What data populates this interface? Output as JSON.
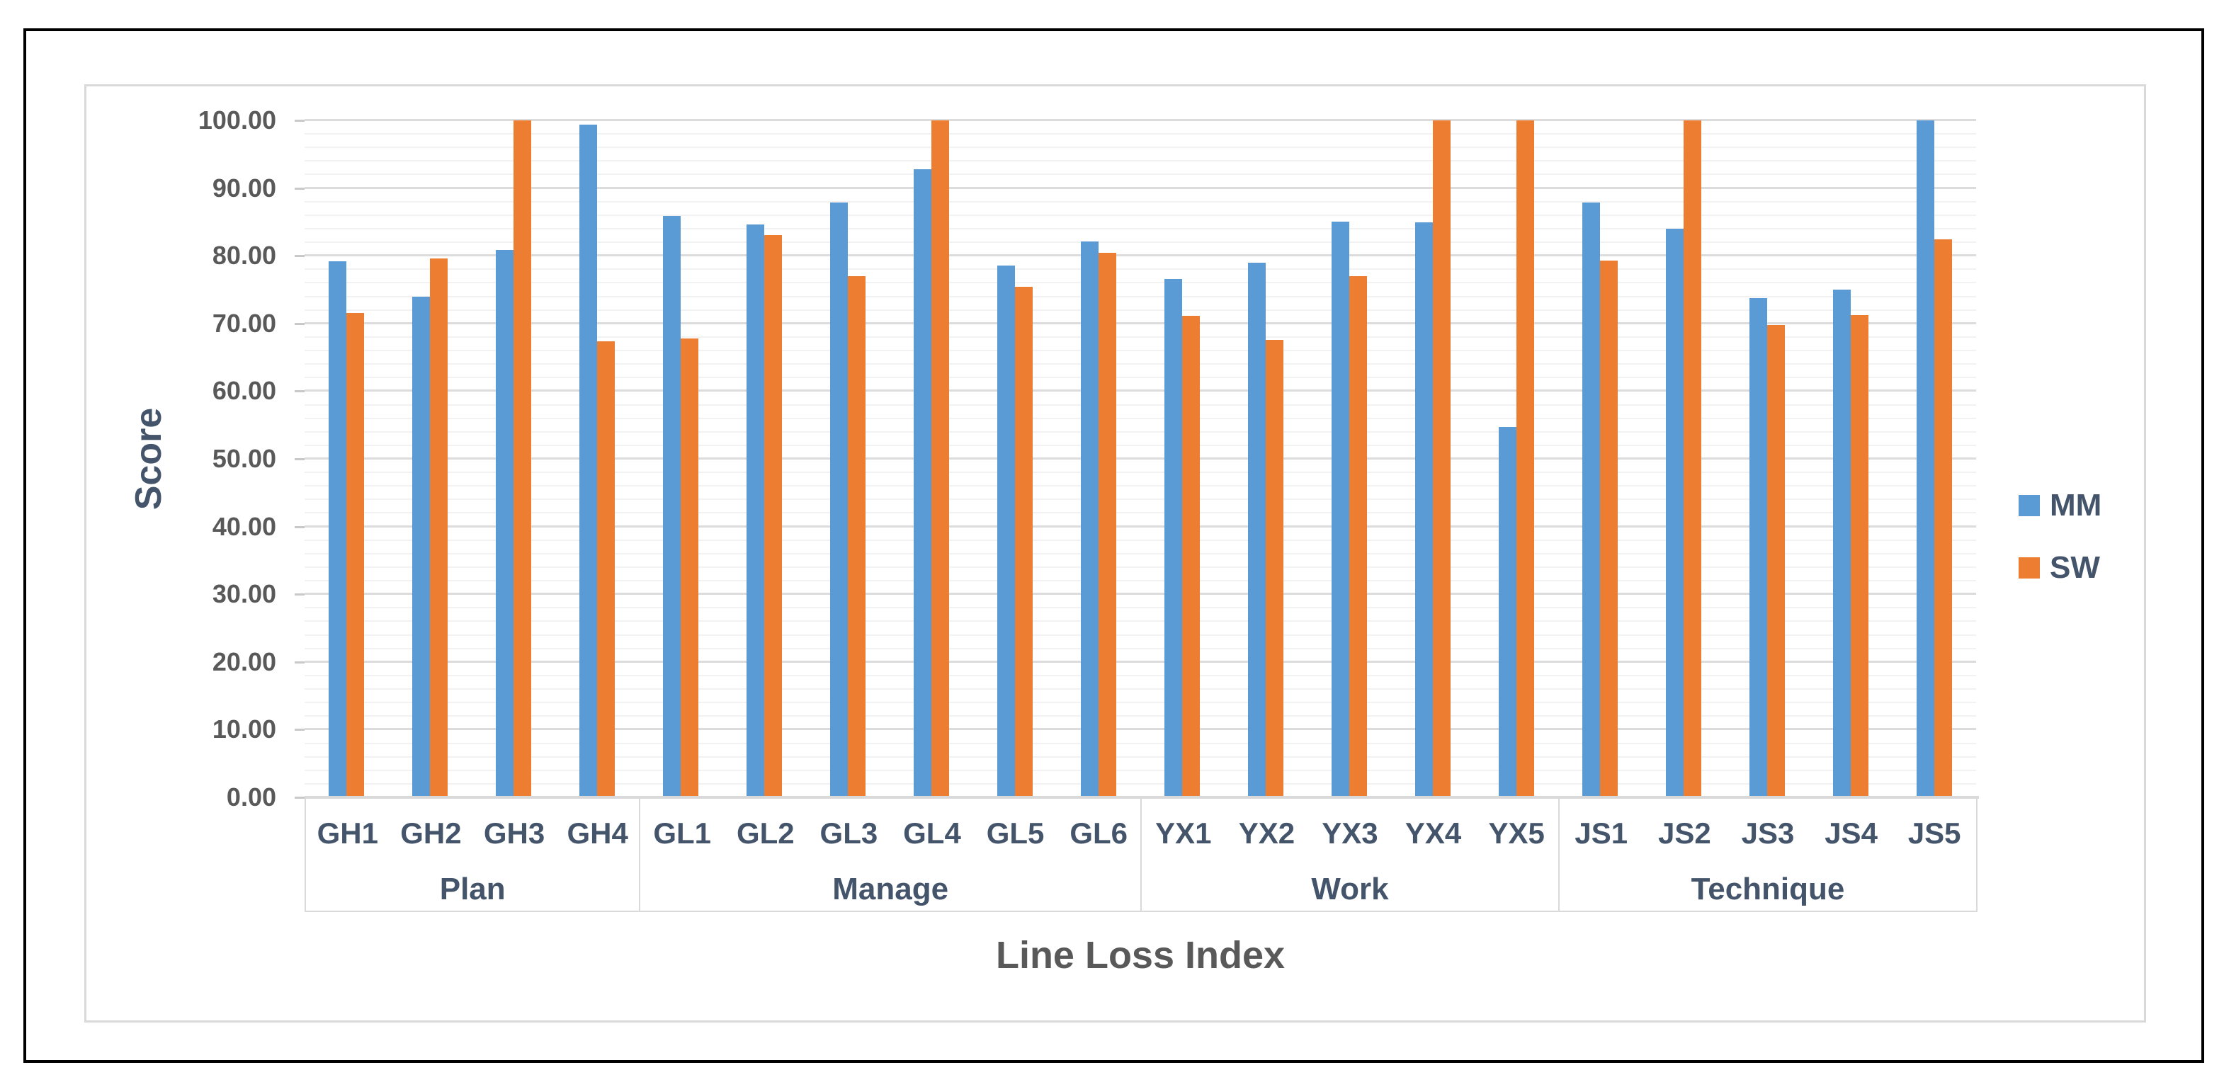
{
  "chart_data": {
    "type": "bar",
    "categories": [
      "GH1",
      "GH2",
      "GH3",
      "GH4",
      "GL1",
      "GL2",
      "GL3",
      "GL4",
      "GL5",
      "GL6",
      "YX1",
      "YX2",
      "YX3",
      "YX4",
      "YX5",
      "JS1",
      "JS2",
      "JS3",
      "JS4",
      "JS5"
    ],
    "groups": [
      {
        "label": "Plan",
        "count": 4
      },
      {
        "label": "Manage",
        "count": 6
      },
      {
        "label": "Work",
        "count": 5
      },
      {
        "label": "Technique",
        "count": 5
      }
    ],
    "series": [
      {
        "name": "MM",
        "color": "#5B9BD5",
        "values": [
          79.2,
          74.0,
          80.9,
          99.4,
          85.9,
          84.6,
          87.9,
          92.8,
          78.6,
          82.1,
          76.6,
          79.0,
          85.0,
          84.9,
          54.7,
          87.9,
          84.0,
          73.7,
          75.0,
          100.0
        ]
      },
      {
        "name": "SW",
        "color": "#ED7D31",
        "values": [
          71.5,
          79.6,
          100.0,
          67.4,
          67.8,
          83.1,
          77.0,
          100.0,
          75.4,
          80.4,
          71.1,
          67.6,
          77.0,
          100.0,
          100.0,
          79.3,
          100.0,
          69.8,
          71.2,
          82.4
        ]
      }
    ],
    "title": "",
    "xlabel": "Line Loss Index",
    "ylabel": "Score",
    "ylim": [
      0,
      100
    ],
    "y_major_step": 10,
    "y_minor_step": 2,
    "y_tick_labels": [
      "0.00",
      "10.00",
      "20.00",
      "30.00",
      "40.00",
      "50.00",
      "60.00",
      "70.00",
      "80.00",
      "90.00",
      "100.00"
    ],
    "grid": true,
    "legend_position": "right-middle"
  },
  "colors": {
    "major_grid": "#DCDCDC",
    "minor_grid": "#F2F2F2",
    "axis_line": "#D9D9D9",
    "tick_text": "#595959",
    "label_text": "#44546A",
    "axis_title_text": "#595959",
    "outer_border": "#000000",
    "chart_border": "#D9D9D9",
    "background": "#FFFFFF"
  }
}
